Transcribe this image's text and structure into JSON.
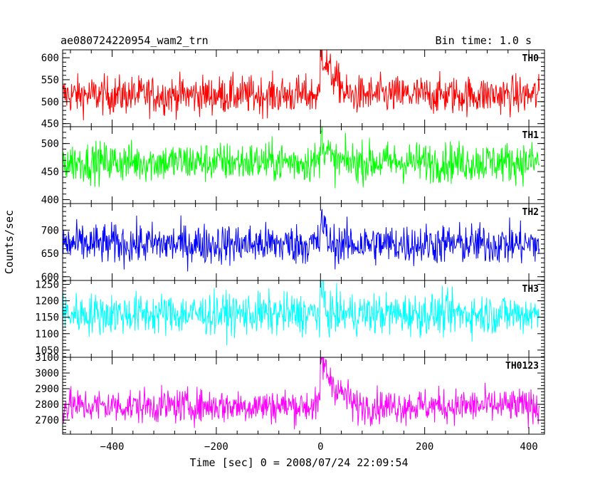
{
  "header": {
    "left_title": "ae080724220954_wam2_trn",
    "right_title": "Bin time: 1.0 s"
  },
  "chart_data": {
    "type": "line",
    "xlabel": "Time [sec] 0 = 2008/07/24 22:09:54",
    "ylabel": "Counts/sec",
    "xlim": [
      -495,
      430
    ],
    "x_ticks": [
      -400,
      -200,
      0,
      200,
      400
    ],
    "x_range": [
      -495,
      420
    ],
    "bin_time": 1.0,
    "grid": false,
    "panels": [
      {
        "name": "TH0",
        "color": "#ff0000",
        "ylim": [
          443,
          618
        ],
        "y_ticks": [
          450,
          500,
          550,
          600
        ],
        "mean": 515,
        "noise": 22,
        "peak_height": 110,
        "decay_start": 45,
        "decay_tau": 25
      },
      {
        "name": "TH1",
        "color": "#00ff00",
        "ylim": [
          393,
          530
        ],
        "y_ticks": [
          400,
          450,
          500
        ],
        "mean": 467,
        "noise": 18,
        "peak_height": 50,
        "decay_start": 20,
        "decay_tau": 15
      },
      {
        "name": "TH2",
        "color": "#0000ff",
        "ylim": [
          592,
          757
        ],
        "y_ticks": [
          600,
          650,
          700
        ],
        "mean": 670,
        "noise": 22,
        "peak_height": 60,
        "decay_start": 15,
        "decay_tau": 12
      },
      {
        "name": "TH3",
        "color": "#00ffff",
        "ylim": [
          1028,
          1262
        ],
        "y_ticks": [
          1050,
          1100,
          1150,
          1200,
          1250
        ],
        "mean": 1160,
        "noise": 32,
        "peak_height": 90,
        "decay_start": 10,
        "decay_tau": 10
      },
      {
        "name": "TH0123",
        "color": "#ff00ff",
        "ylim": [
          2610,
          3100
        ],
        "y_ticks": [
          2700,
          2800,
          2900,
          3000,
          3100
        ],
        "mean": 2790,
        "noise": 55,
        "peak_height": 320,
        "decay_start": 60,
        "decay_tau": 30
      }
    ]
  }
}
